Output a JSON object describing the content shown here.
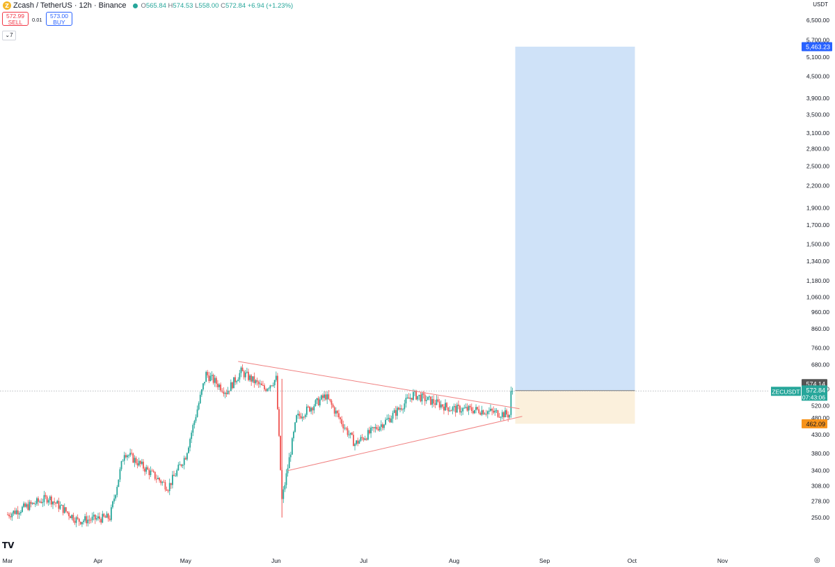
{
  "header": {
    "symbol_title": "Zcash / TetherUS · 12h · Binance",
    "open_label": "O",
    "open": "565.84",
    "high_label": "H",
    "high": "574.53",
    "low_label": "L",
    "low": "558.00",
    "close_label": "C",
    "close": "572.84",
    "change": "+6.94 (+1.23%)"
  },
  "trade": {
    "sell_price": "572.99",
    "sell_label": "SELL",
    "spread": "0.01",
    "buy_price": "573.00",
    "buy_label": "BUY"
  },
  "indicator_count": "7",
  "axis_currency": "USDT",
  "colors": {
    "up": "#26a69a",
    "down": "#ef5350",
    "target_zone": "#cfe2f8",
    "stop_zone": "#fbf0dc",
    "triangle": "#f08080"
  },
  "chart_data": {
    "type": "candlestick",
    "symbol": "ZECUSDT",
    "interval": "12h",
    "y_scale": "log",
    "ylim": [
      235,
      6900
    ],
    "x_ticks": [
      "Mar",
      "Apr",
      "May",
      "Jun",
      "Jul",
      "Aug",
      "Sep",
      "Oct",
      "Nov"
    ],
    "y_ticks": [
      250,
      278,
      308,
      340,
      380,
      430,
      480,
      520,
      580,
      680,
      760,
      860,
      960,
      1060,
      1180,
      1340,
      1500,
      1700,
      1900,
      2200,
      2500,
      2800,
      3100,
      3500,
      3900,
      4500,
      5100,
      5700,
      6500
    ],
    "y_tick_labels": [
      "250.00",
      "278.00",
      "308.00",
      "340.00",
      "380.00",
      "430.00",
      "480.00",
      "520.00",
      "580.00",
      "680.00",
      "760.00",
      "860.00",
      "960.00",
      "1,060.00",
      "1,180.00",
      "1,340.00",
      "1,500.00",
      "1,700.00",
      "1,900.00",
      "2,200.00",
      "2,500.00",
      "2,800.00",
      "3,100.00",
      "3,500.00",
      "3,900.00",
      "4,500.00",
      "5,100.00",
      "5,700.00",
      "6,500.00"
    ],
    "close_path_keypoints": [
      [
        "2025-03-01",
        255
      ],
      [
        "2025-03-15",
        285
      ],
      [
        "2025-03-25",
        245
      ],
      [
        "2025-04-05",
        250
      ],
      [
        "2025-04-10",
        385
      ],
      [
        "2025-04-25",
        305
      ],
      [
        "2025-05-01",
        375
      ],
      [
        "2025-05-08",
        640
      ],
      [
        "2025-05-15",
        570
      ],
      [
        "2025-05-20",
        650
      ],
      [
        "2025-05-28",
        580
      ],
      [
        "2025-06-01",
        620
      ],
      [
        "2025-06-03",
        280
      ],
      [
        "2025-06-08",
        480
      ],
      [
        "2025-06-18",
        555
      ],
      [
        "2025-06-28",
        405
      ],
      [
        "2025-07-10",
        480
      ],
      [
        "2025-07-18",
        560
      ],
      [
        "2025-07-31",
        510
      ],
      [
        "2025-08-10",
        505
      ],
      [
        "2025-08-20",
        490
      ],
      [
        "2025-08-21",
        572.84
      ]
    ],
    "triangle": {
      "upper": [
        [
          "2025-05-19",
          695
        ],
        [
          "2025-08-21",
          510
        ]
      ],
      "lower": [
        [
          "2025-06-05",
          340
        ],
        [
          "2025-08-21",
          485
        ]
      ]
    },
    "position": {
      "entry": 574.14,
      "target": 5463.23,
      "stop": 462.09,
      "start_date": "2025-08-21",
      "end_date": "2025-10-01"
    },
    "price_labels": {
      "target": "5,463.23",
      "entry": "574.14",
      "current": "572.84",
      "stop": "462.09",
      "symbol_tag": "ZECUSDT",
      "countdown": "07:43:06"
    }
  }
}
